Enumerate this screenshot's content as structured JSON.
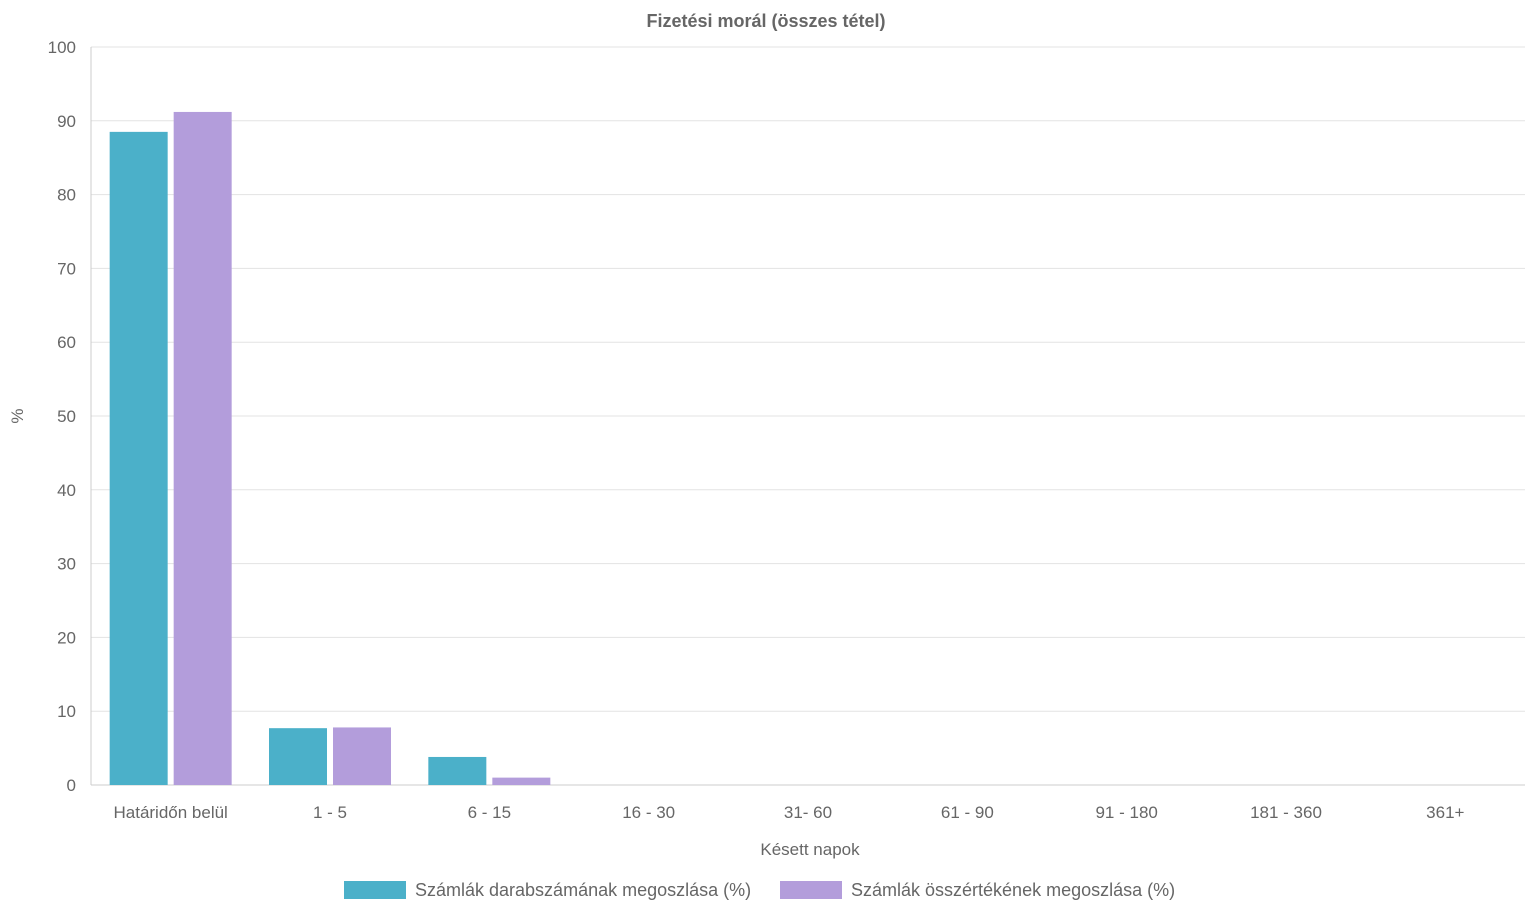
{
  "chart_data": {
    "type": "bar",
    "title": "Fizetési morál (összes tétel)",
    "xlabel": "Késett napok",
    "ylabel": "%",
    "ylim": [
      0,
      100
    ],
    "yticks": [
      0,
      10,
      20,
      30,
      40,
      50,
      60,
      70,
      80,
      90,
      100
    ],
    "grid": true,
    "legend_position": "bottom",
    "categories": [
      "Határidőn belül",
      "1 - 5",
      "6 - 15",
      "16 - 30",
      "31- 60",
      "61 - 90",
      "91 - 180",
      "181 - 360",
      "361+"
    ],
    "series": [
      {
        "name": "Számlák darabszámának megoszlása (%)",
        "color": "#4bb0c9",
        "values": [
          88.5,
          7.7,
          3.8,
          0,
          0,
          0,
          0,
          0,
          0
        ]
      },
      {
        "name": "Számlák összértékének megoszlása (%)",
        "color": "#b39ddb",
        "values": [
          91.2,
          7.8,
          1.0,
          0,
          0,
          0,
          0,
          0,
          0
        ]
      }
    ]
  }
}
